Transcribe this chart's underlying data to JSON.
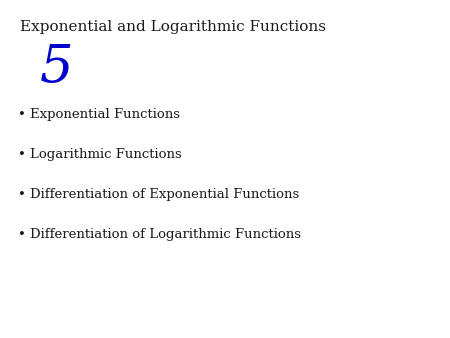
{
  "title": "Exponential and Logarithmic Functions",
  "chapter_number": "5",
  "title_color": "#1a1a1a",
  "chapter_number_color": "#0000cc",
  "bullet_items": [
    "Exponential Functions",
    "Logarithmic Functions",
    "Differentiation of Exponential Functions",
    "Differentiation of Logarithmic Functions"
  ],
  "bullet_color": "#1a1a1a",
  "background_color": "#ffffff",
  "title_fontsize": 11,
  "chapter_number_fontsize": 38,
  "bullet_fontsize": 9.5
}
